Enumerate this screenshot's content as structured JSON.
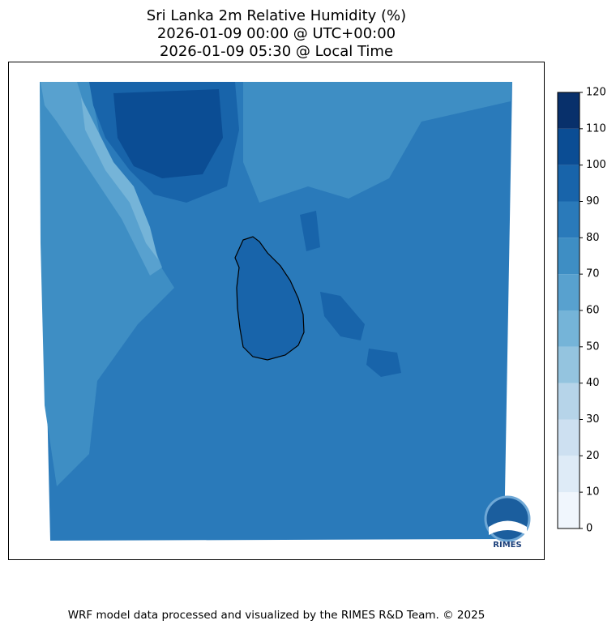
{
  "title": [
    "Sri Lanka 2m Relative Humidity (%)",
    "2026-01-09 00:00 @ UTC+00:00",
    "2026-01-09 05:30 @ Local Time"
  ],
  "colorbar": {
    "lim": [
      0,
      120
    ],
    "ticks": [
      0,
      10,
      20,
      30,
      40,
      50,
      60,
      70,
      80,
      90,
      100,
      110,
      120
    ],
    "colors": [
      "#f0f6fd",
      "#deebf7",
      "#cde0f1",
      "#b6d4e9",
      "#94c4df",
      "#75b4d8",
      "#58a1cf",
      "#3e8ec4",
      "#2a7aba",
      "#1864aa",
      "#0b4d94",
      "#08306b"
    ]
  },
  "logo": "RIMES",
  "footer": "WRF model data processed and visualized by the RIMES R&D Team. © 2025"
}
